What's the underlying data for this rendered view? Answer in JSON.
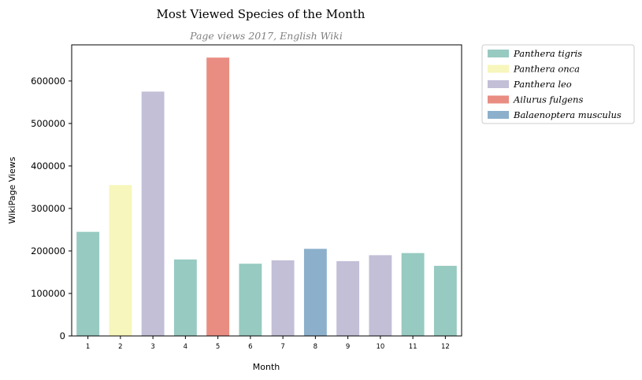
{
  "chart_data": {
    "type": "bar",
    "title": "Most Viewed Species of the Month",
    "subtitle": "Page views 2017, English Wiki",
    "xlabel": "Month",
    "ylabel": "WikiPage Views",
    "ylim": [
      0,
      685000
    ],
    "yticks": [
      0,
      100000,
      200000,
      300000,
      400000,
      500000,
      600000
    ],
    "ytick_labels": [
      "0",
      "100000",
      "200000",
      "300000",
      "400000",
      "500000",
      "600000"
    ],
    "categories": [
      "1",
      "2",
      "3",
      "4",
      "5",
      "6",
      "7",
      "8",
      "9",
      "10",
      "11",
      "12"
    ],
    "values": [
      245000,
      355000,
      575000,
      180000,
      655000,
      170000,
      178000,
      205000,
      176000,
      190000,
      195000,
      165000
    ],
    "species": [
      "Panthera tigris",
      "Panthera onca",
      "Panthera leo",
      "Panthera tigris",
      "Ailurus fulgens",
      "Panthera tigris",
      "Panthera leo",
      "Balaenoptera musculus",
      "Panthera leo",
      "Panthera leo",
      "Panthera tigris",
      "Panthera tigris"
    ],
    "legend_placement": "outside-top-right",
    "grid": false,
    "legend": [
      {
        "name": "Panthera tigris",
        "color": "#97cac1"
      },
      {
        "name": "Panthera onca",
        "color": "#f7f6bc"
      },
      {
        "name": "Panthera leo",
        "color": "#c2bfd7"
      },
      {
        "name": "Ailurus fulgens",
        "color": "#e98d82"
      },
      {
        "name": "Balaenoptera musculus",
        "color": "#8cb0cb"
      }
    ]
  }
}
